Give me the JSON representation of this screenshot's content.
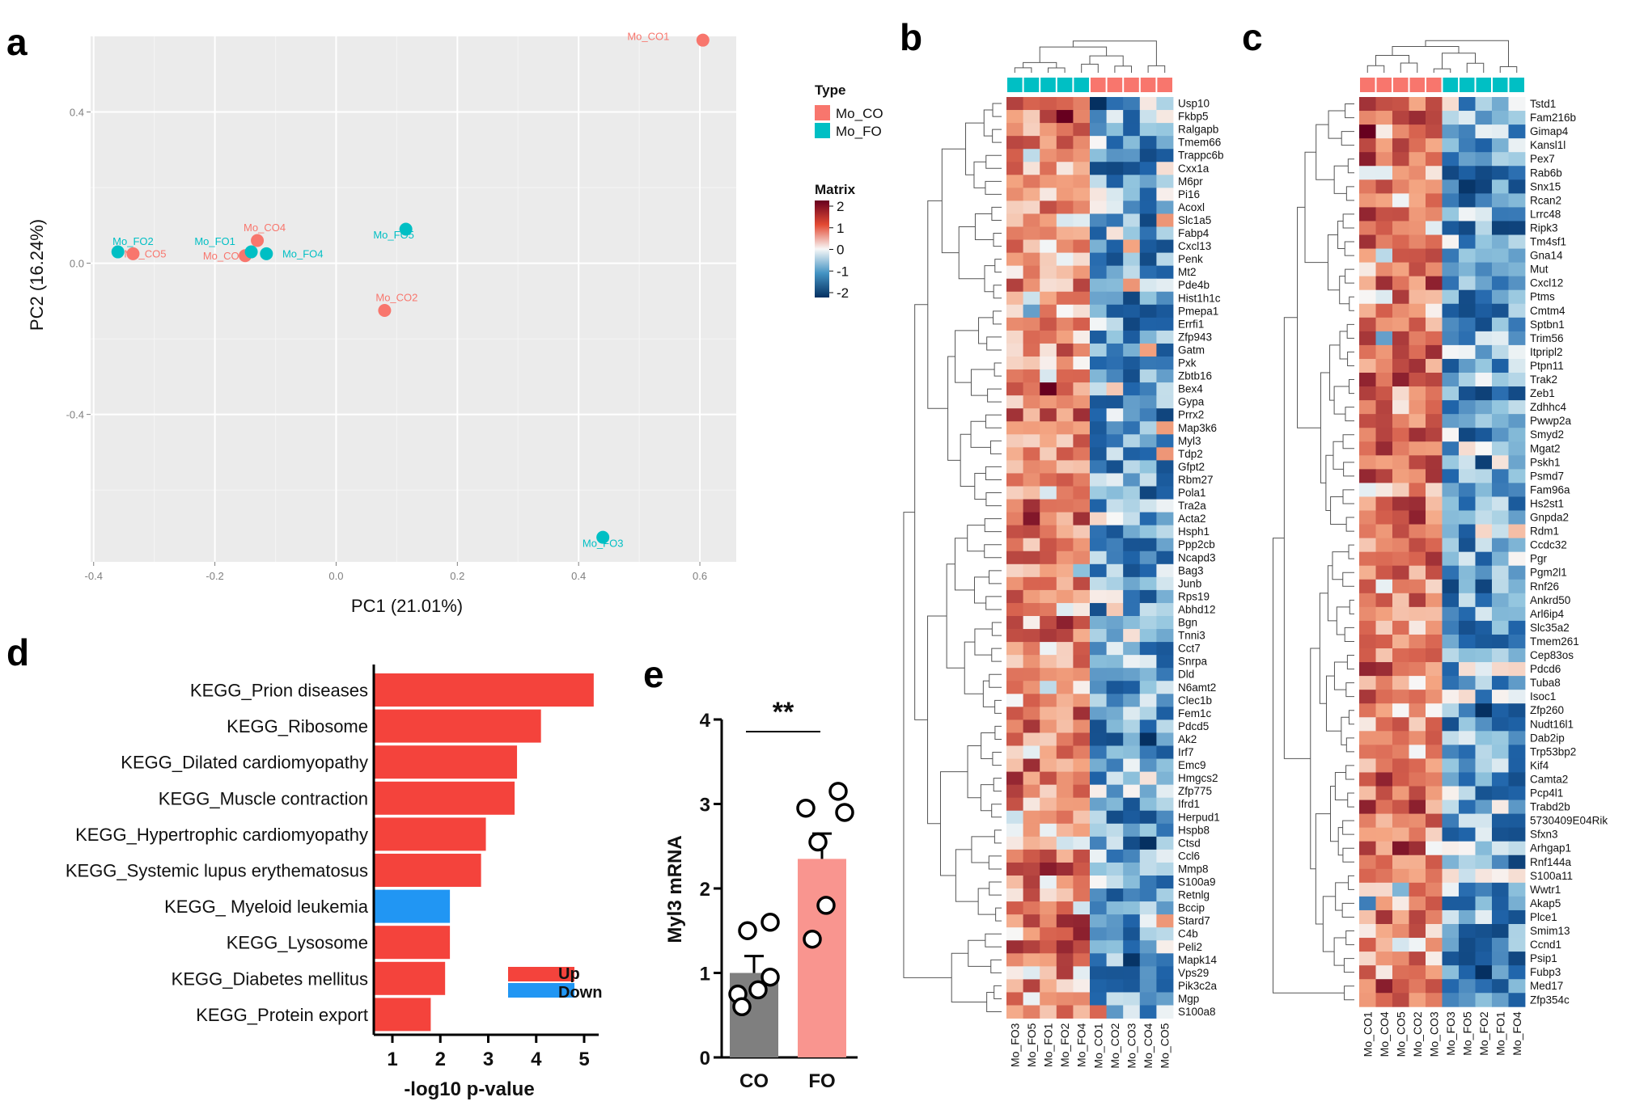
{
  "colors": {
    "co": "#F8766D",
    "fo": "#00BFC4",
    "up": "#F4433C",
    "down": "#2196F3",
    "co_bar": "#7f7f7f",
    "fo_bar": "#F9958F"
  },
  "panel_labels": {
    "a": "a",
    "b": "b",
    "c": "c",
    "d": "d",
    "e": "e"
  },
  "chart_data": [
    {
      "id": "a",
      "type": "scatter",
      "xlabel": "PC1 (21.01%)",
      "ylabel": "PC2 (16.24%)",
      "xlim": [
        -0.405,
        0.66
      ],
      "ylim": [
        -0.79,
        0.6
      ],
      "xticks": [
        {
          "v": -0.4,
          "label": "-0.4"
        },
        {
          "v": -0.2,
          "label": "-0.2"
        },
        {
          "v": 0.0,
          "label": "0.0"
        },
        {
          "v": 0.2,
          "label": "0.2"
        },
        {
          "v": 0.4,
          "label": "0.4"
        },
        {
          "v": 0.6,
          "label": "0.6"
        }
      ],
      "yticks": [
        {
          "v": -0.4,
          "label": "-0.4"
        },
        {
          "v": 0.0,
          "label": "0.0"
        },
        {
          "v": 0.4,
          "label": "0.4"
        }
      ],
      "legend_title": "Type",
      "legend": [
        {
          "name": "Mo_CO",
          "group": "co"
        },
        {
          "name": "Mo_FO",
          "group": "fo"
        }
      ],
      "points": [
        {
          "label": "Mo_CO1",
          "group": "co",
          "x": 0.605,
          "y": 0.59,
          "lx": -0.09,
          "ly": 0.0
        },
        {
          "label": "Mo_CO2",
          "group": "co",
          "x": 0.08,
          "y": -0.125,
          "lx": 0.02,
          "ly": 0.025
        },
        {
          "label": "Mo_CO3",
          "group": "co",
          "x": -0.15,
          "y": 0.02,
          "lx": -0.035,
          "ly": -0.01
        },
        {
          "label": "Mo_CO4",
          "group": "co",
          "x": -0.13,
          "y": 0.06,
          "lx": 0.012,
          "ly": 0.025
        },
        {
          "label": "Mo_CO5",
          "group": "co",
          "x": -0.335,
          "y": 0.025,
          "lx": 0.02,
          "ly": -0.01
        },
        {
          "label": "Mo_FO1",
          "group": "fo",
          "x": -0.14,
          "y": 0.03,
          "lx": -0.06,
          "ly": 0.018
        },
        {
          "label": "Mo_FO2",
          "group": "fo",
          "x": -0.36,
          "y": 0.03,
          "lx": 0.025,
          "ly": 0.018
        },
        {
          "label": "Mo_FO3",
          "group": "fo",
          "x": 0.44,
          "y": -0.725,
          "lx": 0.0,
          "ly": -0.025
        },
        {
          "label": "Mo_FO4",
          "group": "fo",
          "x": -0.115,
          "y": 0.025,
          "lx": 0.06,
          "ly": -0.01
        },
        {
          "label": "Mo_FO5",
          "group": "fo",
          "x": 0.115,
          "y": 0.09,
          "lx": -0.02,
          "ly": -0.025
        }
      ]
    },
    {
      "id": "b",
      "type": "heatmap",
      "legend_title": "Matrix",
      "scale_ticks": [
        {
          "v": 2,
          "label": "2"
        },
        {
          "v": 1,
          "label": "1"
        },
        {
          "v": 0,
          "label": "0"
        },
        {
          "v": -1,
          "label": "-1"
        },
        {
          "v": -2,
          "label": "-2"
        }
      ],
      "columns": [
        "Mo_FO3",
        "Mo_FO5",
        "Mo_FO1",
        "Mo_FO2",
        "Mo_FO4",
        "Mo_CO1",
        "Mo_CO2",
        "Mo_CO3",
        "Mo_CO4",
        "Mo_CO5"
      ],
      "column_groups": [
        "fo",
        "fo",
        "fo",
        "fo",
        "fo",
        "co",
        "co",
        "co",
        "co",
        "co"
      ],
      "rows": [
        "Usp10",
        "Fkbp5",
        "Ralgapb",
        "Tmem66",
        "Trappc6b",
        "Cxx1a",
        "M6pr",
        "Pi16",
        "Acoxl",
        "Slc1a5",
        "Fabp4",
        "Cxcl13",
        "Penk",
        "Mt2",
        "Pde4b",
        "Hist1h1c",
        "Pmepa1",
        "Errfi1",
        "Zfp943",
        "Gatm",
        "Pxk",
        "Zbtb16",
        "Bex4",
        "Gypa",
        "Prrx2",
        "Map3k6",
        "Myl3",
        "Tdp2",
        "Gfpt2",
        "Rbm27",
        "Pola1",
        "Tra2a",
        "Acta2",
        "Hsph1",
        "Ppp2cb",
        "Ncapd3",
        "Bag3",
        "Junb",
        "Rps19",
        "Abhd12",
        "Bgn",
        "Tnni3",
        "Cct7",
        "Snrpa",
        "Dld",
        "N6amt2",
        "Clec1b",
        "Fem1c",
        "Pdcd5",
        "Ak2",
        "Irf7",
        "Emc9",
        "Hmgcs2",
        "Zfp775",
        "Ifrd1",
        "Herpud1",
        "Hspb8",
        "Ctsd",
        "Ccl6",
        "Mmp8",
        "S100a9",
        "Retnlg",
        "Bccip",
        "Stard7",
        "C4b",
        "Peli2",
        "Mapk14",
        "Vps29",
        "Pik3c2a",
        "Mgp",
        "S100a8"
      ]
    },
    {
      "id": "c",
      "type": "heatmap",
      "columns": [
        "Mo_CO1",
        "Mo_CO4",
        "Mo_CO5",
        "Mo_CO2",
        "Mo_CO3",
        "Mo_FO3",
        "Mo_FO5",
        "Mo_FO2",
        "Mo_FO1",
        "Mo_FO4"
      ],
      "column_groups": [
        "co",
        "co",
        "co",
        "co",
        "co",
        "fo",
        "fo",
        "fo",
        "fo",
        "fo"
      ],
      "rows": [
        "Tstd1",
        "Fam216b",
        "Gimap4",
        "Kansl1l",
        "Pex7",
        "Rab6b",
        "Snx15",
        "Rcan2",
        "Lrrc48",
        "Ripk3",
        "Tm4sf1",
        "Gna14",
        "Mut",
        "Cxcl12",
        "Ptms",
        "Cmtm4",
        "Sptbn1",
        "Trim56",
        "Itpripl2",
        "Ptpn11",
        "Trak2",
        "Zeb1",
        "Zdhhc4",
        "Pwwp2a",
        "Smyd2",
        "Mgat2",
        "Pskh1",
        "Psmd7",
        "Fam96a",
        "Hs2st1",
        "Gnpda2",
        "Rdm1",
        "Ccdc32",
        "Pgr",
        "Pgm2l1",
        "Rnf26",
        "Ankrd50",
        "Arl6ip4",
        "Slc35a2",
        "Tmem261",
        "Cep83os",
        "Pdcd6",
        "Tuba8",
        "Isoc1",
        "Zfp260",
        "Nudt16l1",
        "Dab2ip",
        "Trp53bp2",
        "Kif4",
        "Camta2",
        "Pcp4l1",
        "Trabd2b",
        "5730409E04Rik",
        "Sfxn3",
        "Arhgap1",
        "Rnf144a",
        "S100a11",
        "Wwtr1",
        "Akap5",
        "Plce1",
        "Smim13",
        "Ccnd1",
        "Psip1",
        "Fubp3",
        "Med17",
        "Zfp354c"
      ]
    },
    {
      "id": "d",
      "type": "bar",
      "orientation": "horizontal",
      "xlabel": "-log10 p-value",
      "xlim": [
        0.5,
        5.5
      ],
      "xticks": [
        1,
        2,
        3,
        4,
        5
      ],
      "legend": [
        {
          "name": "Up",
          "dir": "up"
        },
        {
          "name": "Down",
          "dir": "down"
        }
      ],
      "categories": [
        "KEGG_Prion diseases",
        "KEGG_Ribosome",
        "KEGG_Dilated cardiomyopathy",
        "KEGG_Muscle contraction",
        "KEGG_Hypertrophic cardiomyopathy",
        "KEGG_Systemic lupus erythematosus",
        "KEGG_ Myeloid leukemia",
        "KEGG_Lysosome",
        "KEGG_Diabetes mellitus",
        "KEGG_Protein export"
      ],
      "values": [
        5.2,
        4.1,
        3.6,
        3.55,
        2.95,
        2.85,
        2.2,
        2.2,
        2.1,
        1.8
      ],
      "direction": [
        "up",
        "up",
        "up",
        "up",
        "up",
        "up",
        "down",
        "up",
        "up",
        "up"
      ]
    },
    {
      "id": "e",
      "type": "bar",
      "ylabel": "Myl3 mRNA",
      "ylim": [
        0,
        4
      ],
      "yticks": [
        0,
        1,
        2,
        3,
        4
      ],
      "categories": [
        "CO",
        "FO"
      ],
      "values": [
        1.0,
        2.35
      ],
      "sem": [
        0.2,
        0.3
      ],
      "significance": "**",
      "points": {
        "CO": [
          1.6,
          1.5,
          0.95,
          0.75,
          0.8,
          0.6
        ],
        "FO": [
          3.15,
          2.95,
          2.9,
          2.55,
          1.8,
          1.4
        ]
      }
    }
  ]
}
